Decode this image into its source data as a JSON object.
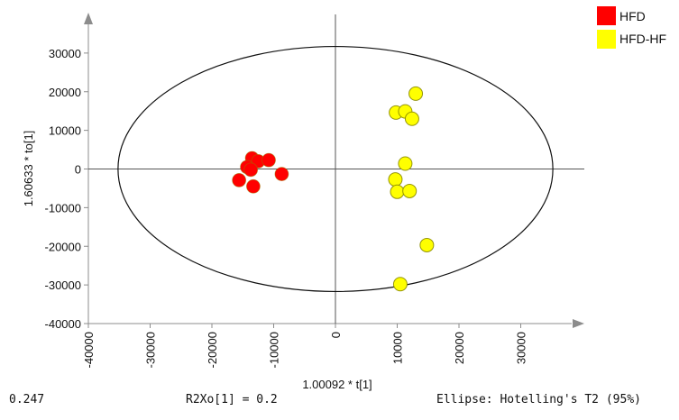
{
  "chart_data": {
    "type": "scatter",
    "xlabel": "1.00092 * t[1]",
    "ylabel": "1.60633 * to[1]",
    "xlim": [
      -40000,
      40000
    ],
    "ylim": [
      -40000,
      40000
    ],
    "x_ticks": [
      "-40000",
      "-30000",
      "-20000",
      "-10000",
      "0",
      "10000",
      "20000",
      "30000"
    ],
    "y_ticks": [
      "-40000",
      "-30000",
      "-20000",
      "-10000",
      "0",
      "10000",
      "20000",
      "30000"
    ],
    "legend_position": "top-right",
    "ellipse": {
      "rx": 35200,
      "ry": 31700,
      "label": "Ellipse: Hotelling's T2 (95%)"
    },
    "series": [
      {
        "name": "HFD",
        "color": "#ff0000",
        "points": [
          {
            "x": -13500,
            "y": 2800
          },
          {
            "x": -12500,
            "y": 2000
          },
          {
            "x": -10800,
            "y": 2300
          },
          {
            "x": -14300,
            "y": 500
          },
          {
            "x": -13700,
            "y": -200
          },
          {
            "x": -8700,
            "y": -1300
          },
          {
            "x": -15600,
            "y": -2900
          },
          {
            "x": -13300,
            "y": -4500
          }
        ]
      },
      {
        "name": "HFD-HF",
        "color": "#ffff00",
        "points": [
          {
            "x": 13000,
            "y": 19500
          },
          {
            "x": 9800,
            "y": 14600
          },
          {
            "x": 11300,
            "y": 14900
          },
          {
            "x": 12400,
            "y": 13000
          },
          {
            "x": 11300,
            "y": 1400
          },
          {
            "x": 9700,
            "y": -2700
          },
          {
            "x": 10000,
            "y": -5900
          },
          {
            "x": 12000,
            "y": -5700
          },
          {
            "x": 14800,
            "y": -19700
          },
          {
            "x": 10500,
            "y": -29800
          }
        ]
      }
    ]
  },
  "footer": {
    "left": "0.247",
    "middle": "R2Xo[1] = 0.2",
    "right": "Ellipse: Hotelling's T2 (95%)"
  }
}
